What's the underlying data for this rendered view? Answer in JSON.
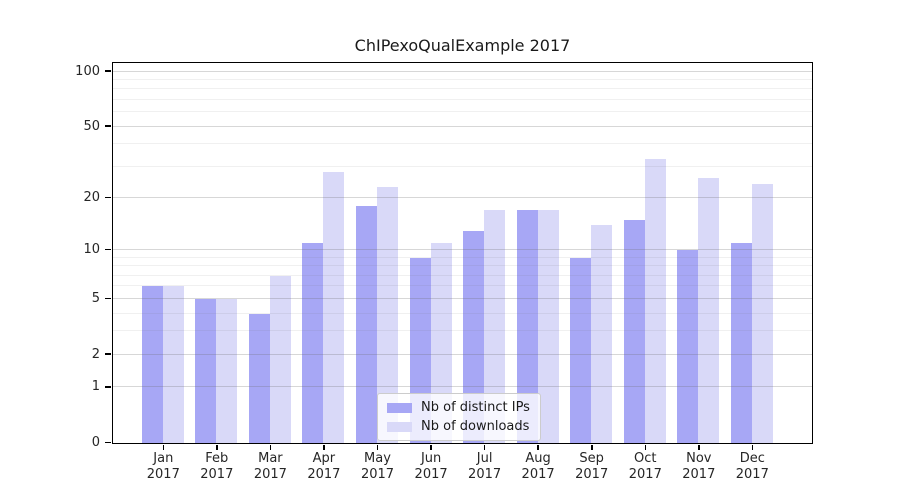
{
  "figure": {
    "title": "ChIPexoQualExample 2017"
  },
  "chart_data": {
    "type": "bar",
    "title": "ChIPexoQualExample 2017",
    "categories": [
      "Jan 2017",
      "Feb 2017",
      "Mar 2017",
      "Apr 2017",
      "May 2017",
      "Jun 2017",
      "Jul 2017",
      "Aug 2017",
      "Sep 2017",
      "Oct 2017",
      "Nov 2017",
      "Dec 2017"
    ],
    "series": [
      {
        "name": "Nb of distinct IPs",
        "color": "#a7a7f5",
        "values": [
          6,
          5,
          4,
          11,
          18,
          9,
          13,
          17,
          9,
          15,
          10,
          11
        ]
      },
      {
        "name": "Nb of downloads",
        "color": "#d9d9f8",
        "values": [
          6,
          5,
          7,
          28,
          23,
          11,
          17,
          17,
          14,
          33,
          26,
          24
        ]
      }
    ],
    "xlabel": "",
    "ylabel": "",
    "yscale": "log1p",
    "ylim": [
      0,
      110
    ],
    "yticks": [
      0,
      1,
      2,
      5,
      10,
      20,
      50,
      100
    ],
    "minor_yticks": [
      3,
      4,
      6,
      7,
      8,
      9,
      30,
      40,
      60,
      70,
      80,
      90
    ],
    "grid": true,
    "legend_position": "lower center inside",
    "bar_group": "paired, IPs left / downloads right"
  }
}
